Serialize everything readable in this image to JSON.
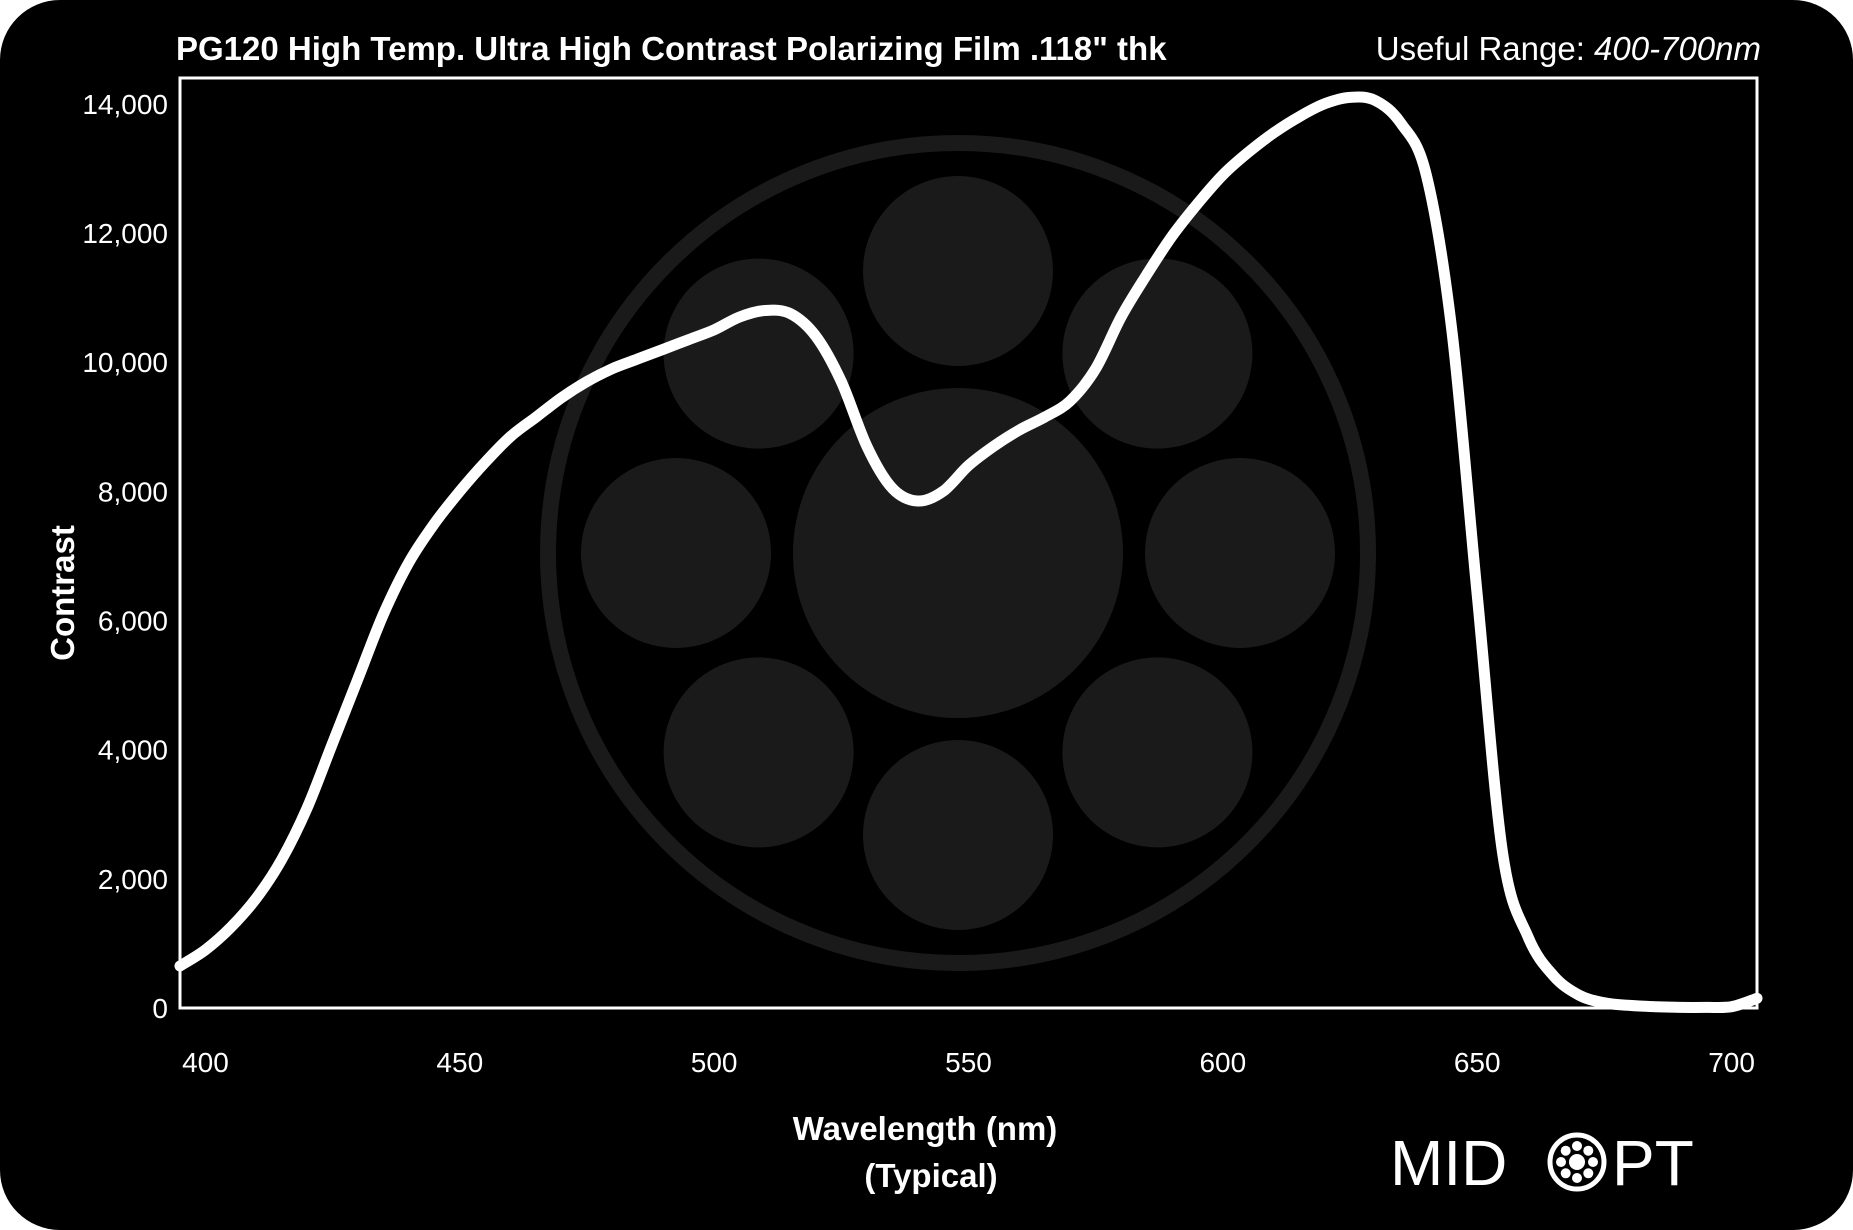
{
  "header": {
    "title": "PG120 High Temp. Ultra High Contrast Polarizing Film .118\" thk",
    "range_label": "Useful Range:",
    "range_value": "400-700nm"
  },
  "logo": {
    "text_left": "MID",
    "text_right": "PT",
    "icon": "lens-ring-icon"
  },
  "colors": {
    "background": "#000000",
    "line": "#ffffff",
    "watermark": "#1a1a1a"
  },
  "chart_data": {
    "type": "line",
    "title": "PG120 High Temp. Ultra High Contrast Polarizing Film .118\" thk",
    "xlabel": "Wavelength (nm)",
    "xlabel_sub": "(Typical)",
    "ylabel": "Contrast",
    "xlim": [
      395,
      705
    ],
    "ylim": [
      0,
      14400
    ],
    "xticks": [
      400,
      450,
      500,
      550,
      600,
      650,
      700
    ],
    "xtick_labels": [
      "400",
      "450",
      "500",
      "550",
      "600",
      "650",
      "700"
    ],
    "yticks": [
      0,
      2000,
      4000,
      6000,
      8000,
      10000,
      12000,
      14000
    ],
    "ytick_labels": [
      "0",
      "2,000",
      "4,000",
      "6,000",
      "8,000",
      "10,000",
      "12,000",
      "14,000"
    ],
    "grid": false,
    "legend": "none",
    "series": [
      {
        "x": [
          395,
          400,
          405,
          410,
          415,
          420,
          425,
          430,
          435,
          440,
          445,
          450,
          455,
          460,
          465,
          470,
          475,
          480,
          485,
          490,
          495,
          500,
          505,
          510,
          515,
          520,
          525,
          530,
          535,
          540,
          545,
          550,
          555,
          560,
          565,
          570,
          575,
          580,
          585,
          590,
          595,
          600,
          605,
          610,
          615,
          620,
          625,
          630,
          635,
          640,
          645,
          650,
          655,
          660,
          665,
          670,
          675,
          680,
          685,
          690,
          695,
          700,
          705
        ],
        "y": [
          650,
          900,
          1250,
          1700,
          2300,
          3100,
          4100,
          5100,
          6100,
          6900,
          7500,
          8000,
          8450,
          8850,
          9150,
          9450,
          9700,
          9900,
          10050,
          10200,
          10350,
          10500,
          10700,
          10800,
          10750,
          10400,
          9700,
          8700,
          8050,
          7850,
          8000,
          8400,
          8700,
          8950,
          9150,
          9400,
          9900,
          10700,
          11350,
          11950,
          12450,
          12900,
          13250,
          13550,
          13800,
          14000,
          14100,
          14050,
          13700,
          12900,
          10500,
          6400,
          2400,
          1100,
          500,
          200,
          80,
          40,
          20,
          10,
          10,
          20,
          150
        ]
      }
    ]
  }
}
